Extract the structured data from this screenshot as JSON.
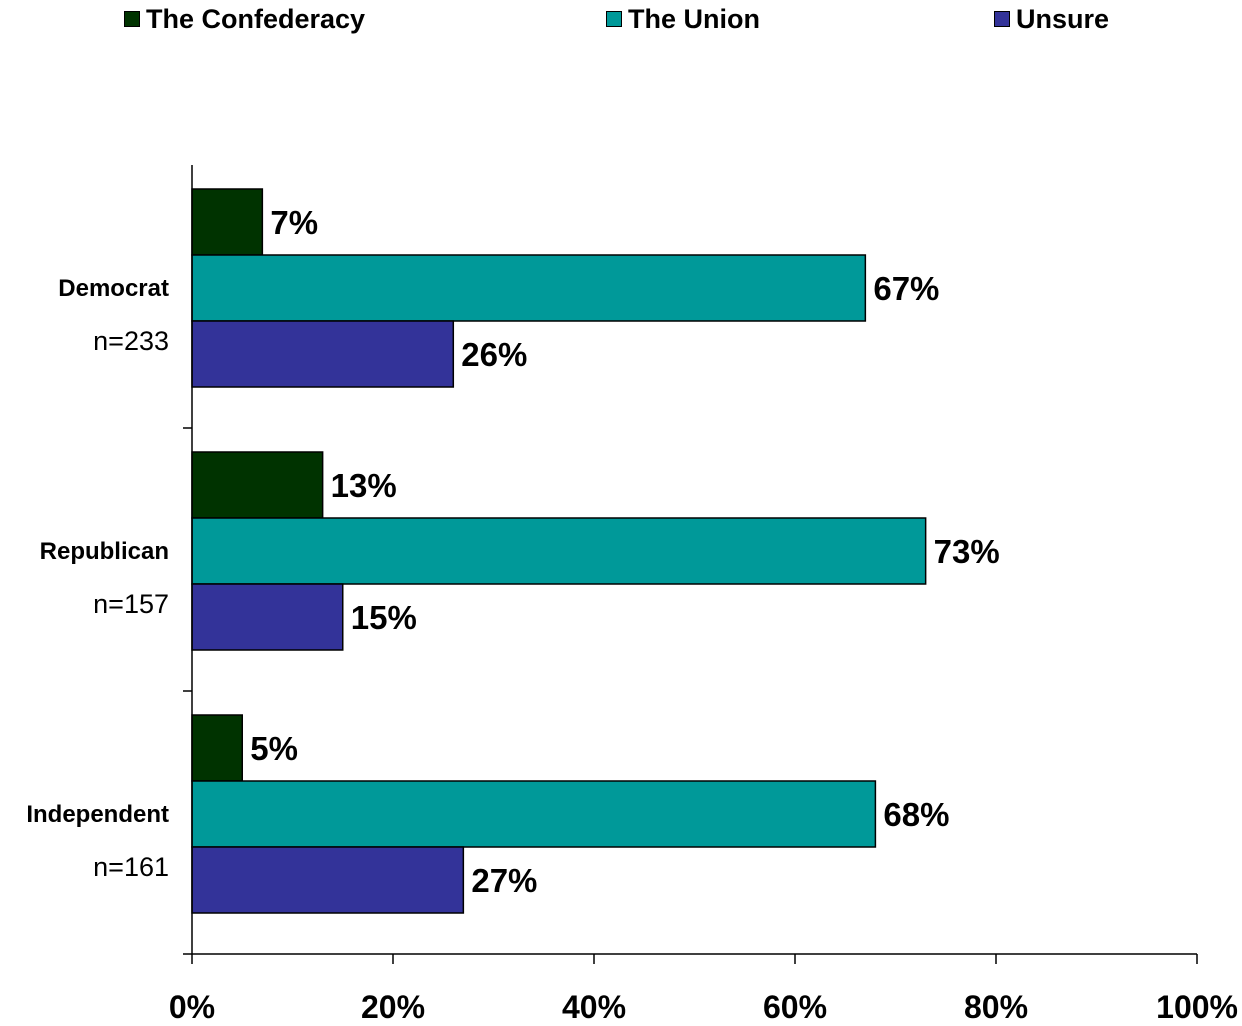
{
  "chart_data": {
    "type": "bar",
    "orientation": "horizontal",
    "categories": [
      "Democrat",
      "Republican",
      "Independent"
    ],
    "category_sample_sizes": [
      "n=233",
      "n=157",
      "n=161"
    ],
    "series": [
      {
        "name": "The Confederacy",
        "values": [
          7,
          13,
          5
        ],
        "color": "#003300"
      },
      {
        "name": "The Union",
        "values": [
          67,
          73,
          68
        ],
        "color": "#009999"
      },
      {
        "name": "Unsure",
        "values": [
          26,
          15,
          27
        ],
        "color": "#333399"
      }
    ],
    "data_labels": [
      [
        "7%",
        "13%",
        "5%"
      ],
      [
        "67%",
        "73%",
        "68%"
      ],
      [
        "26%",
        "15%",
        "27%"
      ]
    ],
    "x_ticks": [
      "0%",
      "20%",
      "40%",
      "60%",
      "80%",
      "100%"
    ],
    "xlim": [
      0,
      100
    ],
    "grid": false,
    "legend_position": "top"
  }
}
